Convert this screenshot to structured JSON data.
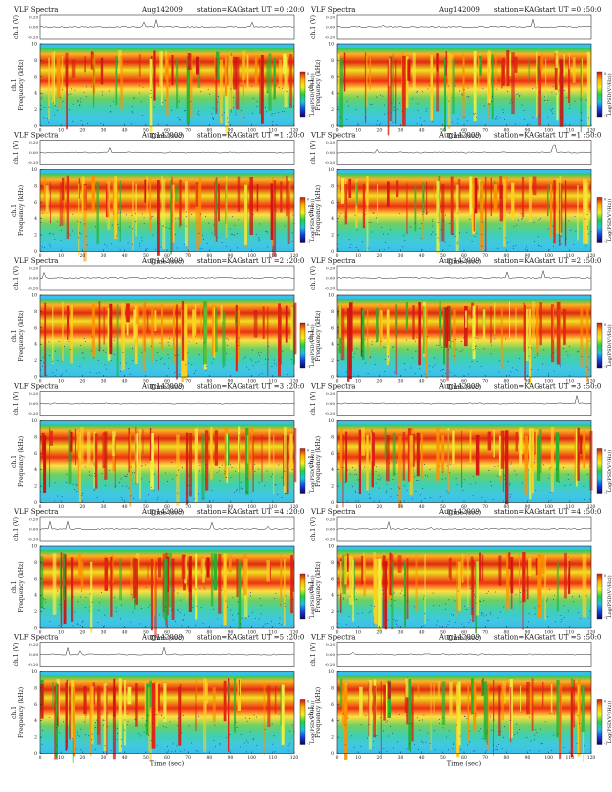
{
  "chart_data": {
    "type": "heatmap",
    "panels": [
      {
        "title": "VLF Spectra",
        "date": "Aug142009",
        "station": "station=KAG",
        "start": "start  UT =0 :20:0"
      },
      {
        "title": "VLF Spectra",
        "date": "Aug142009",
        "station": "station=KAG",
        "start": "start  UT =0 :50:0"
      },
      {
        "title": "VLF Spectra",
        "date": "Aug142009",
        "station": "station=KAG",
        "start": "start  UT =1 :20:0"
      },
      {
        "title": "VLF Spectra",
        "date": "Aug142009",
        "station": "station=KAG",
        "start": "start  UT =1 :50:0"
      },
      {
        "title": "VLF Spectra",
        "date": "Aug142009",
        "station": "station=KAG",
        "start": "start  UT =2 :20:0"
      },
      {
        "title": "VLF Spectra",
        "date": "Aug142009",
        "station": "station=KAG",
        "start": "start  UT =2 :50:0"
      },
      {
        "title": "VLF Spectra",
        "date": "Aug142009",
        "station": "station=KAG",
        "start": "start  UT =3 :20:0"
      },
      {
        "title": "VLF Spectra",
        "date": "Aug142009",
        "station": "station=KAG",
        "start": "start  UT =3 :50:0"
      },
      {
        "title": "VLF Spectra",
        "date": "Aug142009",
        "station": "station=KAG",
        "start": "start  UT =4 :20:0"
      },
      {
        "title": "VLF Spectra",
        "date": "Aug142009",
        "station": "station=KAG",
        "start": "start  UT =4 :50:0"
      },
      {
        "title": "VLF Spectra",
        "date": "Aug142009",
        "station": "station=KAG",
        "start": "start  UT =5 :20:0"
      },
      {
        "title": "VLF Spectra",
        "date": "Aug142009",
        "station": "station=KAG",
        "start": "start  UT =5 :50:0"
      }
    ],
    "waveform": {
      "ylabel": "ch.1 (V)",
      "yticks": [
        "0.20",
        "0.00",
        "-0.20"
      ],
      "ylim": [
        -0.2,
        0.2
      ]
    },
    "spectrogram": {
      "ylabel": "ch.1\nFrequency (kHz)",
      "xlabel": "Time (sec)",
      "xlim": [
        0,
        120
      ],
      "ylim": [
        0,
        10
      ],
      "xticks": [
        "0",
        "10",
        "20",
        "30",
        "40",
        "50",
        "60",
        "70",
        "80",
        "90",
        "100",
        "110",
        "120"
      ],
      "yticks": [
        "0",
        "2",
        "4",
        "6",
        "8",
        "10"
      ]
    },
    "colorbar": {
      "label": "Log(PSD(V²/Hz))",
      "ticks": [
        "0",
        "-1"
      ],
      "colors": [
        "#cc1010",
        "#ffb000",
        "#f0f020",
        "#20d040",
        "#20c0e0",
        "#1040e0",
        "#100060"
      ]
    },
    "layout": {
      "columns": 2,
      "rows": 6
    }
  }
}
